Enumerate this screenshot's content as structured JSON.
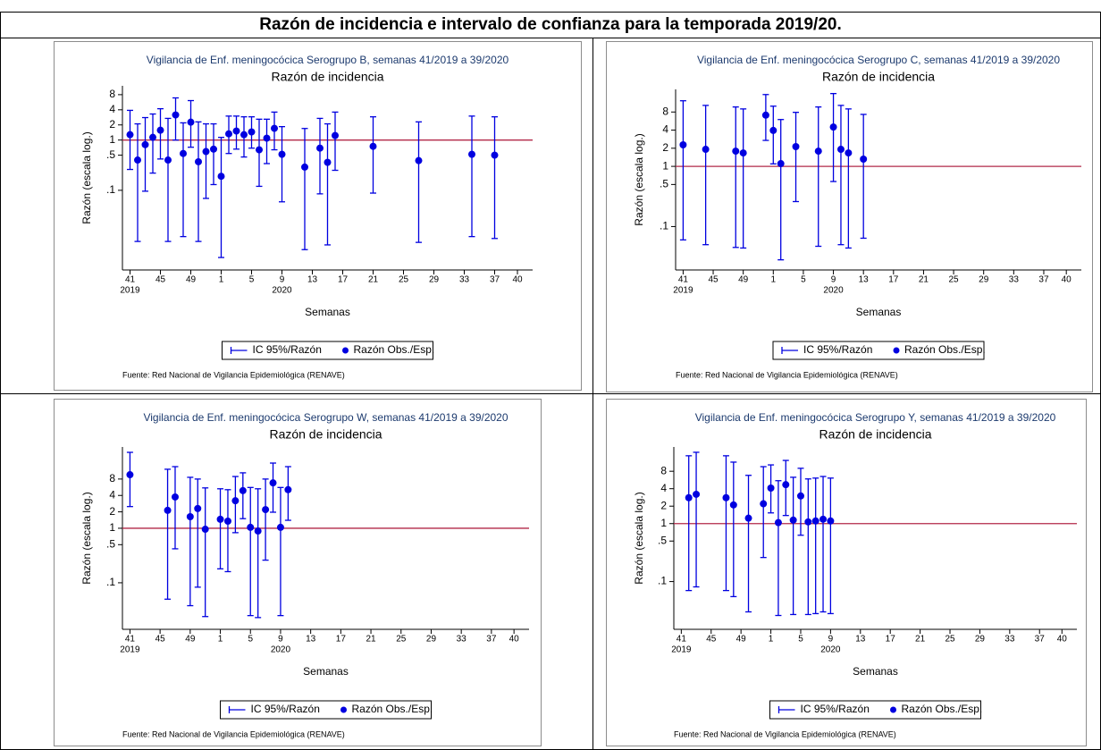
{
  "title": "Razón de incidencia e intervalo de confianza para la temporada 2019/20.",
  "chart_data": [
    {
      "type": "errorbar",
      "title": "Vigilancia de Enf. meningocócica Serogrupo B, semanas 41/2019 a 39/2020",
      "subtitle": "Razón de incidencia",
      "ylabel": "Razón (escala log.)",
      "xlabel": "Semanas",
      "note": "Fuente: Red Nacional de Vigilancia Epidemiológica (RENAVE)",
      "x": [
        "2019-W41",
        "2019-W42",
        "2019-W43",
        "2019-W44",
        "2019-W45",
        "2019-W46",
        "2019-W47",
        "2019-W48",
        "2019-W49",
        "2019-W50",
        "2019-W51",
        "2019-W52",
        "2020-W01",
        "2020-W02",
        "2020-W03",
        "2020-W04",
        "2020-W05",
        "2020-W06",
        "2020-W07",
        "2020-W08",
        "2020-W09",
        "2020-W12",
        "2020-W14",
        "2020-W15",
        "2020-W16",
        "2020-W21",
        "2020-W27",
        "2020-W34",
        "2020-W37"
      ],
      "series": [
        {
          "name": "Razón Obs./Esp.",
          "color": "#0000e0",
          "values": [
            1.28,
            0.4,
            0.81,
            1.13,
            1.57,
            0.4,
            3.16,
            0.54,
            2.27,
            0.37,
            0.59,
            0.66,
            0.19,
            1.33,
            1.51,
            1.28,
            1.45,
            0.64,
            1.09,
            1.71,
            0.52,
            0.29,
            0.69,
            0.36,
            1.23,
            0.75,
            0.39,
            0.52,
            0.5
          ]
        }
      ],
      "error_bars": {
        "name": "IC 95%/Razón",
        "color": "#0000e0",
        "lower": [
          0.26,
          0.0096,
          0.096,
          0.22,
          0.42,
          0.0096,
          1.0,
          0.012,
          0.72,
          0.0096,
          0.069,
          0.13,
          0.0046,
          0.54,
          0.66,
          0.46,
          0.69,
          0.12,
          0.34,
          0.64,
          0.059,
          0.0066,
          0.085,
          0.0082,
          0.25,
          0.088,
          0.0092,
          0.012,
          0.011
        ],
        "upper": [
          3.9,
          2.1,
          2.8,
          3.3,
          4.2,
          2.7,
          6.9,
          2.2,
          6.1,
          2.3,
          2.1,
          2.1,
          1.13,
          3.0,
          3.0,
          2.9,
          2.9,
          2.6,
          2.6,
          3.6,
          1.85,
          1.7,
          2.7,
          2.1,
          3.6,
          2.9,
          2.3,
          3.0,
          2.9
        ]
      },
      "reference_line": {
        "value": 1,
        "color": "#b22848"
      },
      "log_y": true,
      "ylim": [
        0.0026,
        12
      ],
      "yticks": [
        8,
        4,
        2,
        1,
        {
          "value": 0.5,
          "label": ".5"
        },
        {
          "value": 0.1,
          "label": ".1"
        }
      ],
      "xlim": [
        "2019-W40",
        "2020-W42"
      ],
      "xticks": [
        {
          "value": "2019-W41",
          "label": "41"
        },
        {
          "value": "2019-W45",
          "label": "45"
        },
        {
          "value": "2019-W49",
          "label": "49"
        },
        {
          "value": "2020-W01",
          "label": "1"
        },
        {
          "value": "2020-W05",
          "label": "5"
        },
        {
          "value": "2020-W09",
          "label": "9"
        },
        {
          "value": "2020-W13",
          "label": "13"
        },
        {
          "value": "2020-W17",
          "label": "17"
        },
        {
          "value": "2020-W21",
          "label": "21"
        },
        {
          "value": "2020-W25",
          "label": "25"
        },
        {
          "value": "2020-W29",
          "label": "29"
        },
        {
          "value": "2020-W33",
          "label": "33"
        },
        {
          "value": "2020-W37",
          "label": "37"
        },
        {
          "value": "2020-W40",
          "label": "40"
        }
      ],
      "xtick_years": [
        {
          "value": "2019-W41",
          "label": "2019"
        },
        {
          "value": "2020-W09",
          "label": "2020"
        }
      ],
      "legend": "bottom"
    },
    {
      "type": "errorbar",
      "title": "Vigilancia de Enf. meningocócica Serogrupo C, semanas 41/2019 a 39/2020",
      "subtitle": "Razón de incidencia",
      "ylabel": "Razón (escala log.)",
      "xlabel": "Semanas",
      "note": "Fuente: Red Nacional de Vigilancia Epidemiológica (RENAVE)",
      "x": [
        "2019-W41",
        "2019-W44",
        "2019-W48",
        "2019-W49",
        "2019-W52",
        "2020-W01",
        "2020-W02",
        "2020-W04",
        "2020-W07",
        "2020-W09",
        "2020-W10",
        "2020-W11",
        "2020-W13"
      ],
      "series": [
        {
          "name": "Razón Obs./Esp.",
          "color": "#0000e0",
          "values": [
            2.28,
            1.92,
            1.79,
            1.67,
            7.1,
            3.95,
            1.11,
            2.13,
            1.79,
            4.5,
            1.92,
            1.67,
            1.32
          ]
        }
      ],
      "error_bars": {
        "name": "IC 95%/Razón",
        "color": "#0000e0",
        "lower": [
          0.06,
          0.05,
          0.045,
          0.044,
          2.7,
          1.1,
          0.028,
          0.26,
          0.047,
          0.56,
          0.05,
          0.044,
          0.064
        ],
        "upper": [
          12.3,
          10.3,
          9.7,
          9.0,
          15.6,
          10.0,
          6.0,
          7.9,
          9.7,
          16.2,
          10.3,
          9.0,
          7.3
        ]
      },
      "reference_line": {
        "value": 1,
        "color": "#b22848"
      },
      "log_y": true,
      "ylim": [
        0.019,
        19
      ],
      "yticks": [
        8,
        4,
        2,
        1,
        {
          "value": 0.5,
          "label": ".5"
        },
        {
          "value": 0.1,
          "label": ".1"
        }
      ],
      "xlim": [
        "2019-W40",
        "2020-W42"
      ],
      "xticks": [
        {
          "value": "2019-W41",
          "label": "41"
        },
        {
          "value": "2019-W45",
          "label": "45"
        },
        {
          "value": "2019-W49",
          "label": "49"
        },
        {
          "value": "2020-W01",
          "label": "1"
        },
        {
          "value": "2020-W05",
          "label": "5"
        },
        {
          "value": "2020-W09",
          "label": "9"
        },
        {
          "value": "2020-W13",
          "label": "13"
        },
        {
          "value": "2020-W17",
          "label": "17"
        },
        {
          "value": "2020-W21",
          "label": "21"
        },
        {
          "value": "2020-W25",
          "label": "25"
        },
        {
          "value": "2020-W29",
          "label": "29"
        },
        {
          "value": "2020-W33",
          "label": "33"
        },
        {
          "value": "2020-W37",
          "label": "37"
        },
        {
          "value": "2020-W40",
          "label": "40"
        }
      ],
      "xtick_years": [
        {
          "value": "2019-W41",
          "label": "2019"
        },
        {
          "value": "2020-W09",
          "label": "2020"
        }
      ],
      "legend": "bottom"
    },
    {
      "type": "errorbar",
      "title": "Vigilancia de Enf. meningocócica Serogrupo W, semanas 41/2019 a 39/2020",
      "subtitle": "Razón de incidencia",
      "ylabel": "Razón (escala log.)",
      "xlabel": "Semanas",
      "note": "Fuente: Red Nacional de Vigilancia Epidemiológica (RENAVE)",
      "x": [
        "2019-W41",
        "2019-W46",
        "2019-W47",
        "2019-W49",
        "2019-W50",
        "2019-W51",
        "2020-W01",
        "2020-W02",
        "2020-W03",
        "2020-W04",
        "2020-W05",
        "2020-W06",
        "2020-W07",
        "2020-W08",
        "2020-W09",
        "2020-W10"
      ],
      "series": [
        {
          "name": "Razón Obs./Esp.",
          "color": "#0000e0",
          "values": [
            9.6,
            2.13,
            3.75,
            1.63,
            2.3,
            0.96,
            1.46,
            1.35,
            3.2,
            4.9,
            1.04,
            0.89,
            2.2,
            6.8,
            1.04,
            5.1
          ]
        }
      ],
      "error_bars": {
        "name": "IC 95%/Razón",
        "color": "#0000e0",
        "lower": [
          2.5,
          0.05,
          0.42,
          0.038,
          0.083,
          0.024,
          0.18,
          0.16,
          0.83,
          1.5,
          0.025,
          0.023,
          0.26,
          1.97,
          0.025,
          1.4
        ],
        "upper": [
          24.7,
          12.1,
          13.5,
          8.6,
          8.0,
          5.5,
          5.3,
          5.1,
          8.9,
          10.4,
          5.6,
          5.3,
          8.0,
          15.7,
          5.6,
          13.5
        ]
      },
      "reference_line": {
        "value": 1,
        "color": "#b22848"
      },
      "log_y": true,
      "ylim": [
        0.014,
        31
      ],
      "yticks": [
        8,
        4,
        2,
        1,
        {
          "value": 0.5,
          "label": ".5"
        },
        {
          "value": 0.1,
          "label": ".1"
        }
      ],
      "xlim": [
        "2019-W40",
        "2020-W42"
      ],
      "xticks": [
        {
          "value": "2019-W41",
          "label": "41"
        },
        {
          "value": "2019-W45",
          "label": "45"
        },
        {
          "value": "2019-W49",
          "label": "49"
        },
        {
          "value": "2020-W01",
          "label": "1"
        },
        {
          "value": "2020-W05",
          "label": "5"
        },
        {
          "value": "2020-W09",
          "label": "9"
        },
        {
          "value": "2020-W13",
          "label": "13"
        },
        {
          "value": "2020-W17",
          "label": "17"
        },
        {
          "value": "2020-W21",
          "label": "21"
        },
        {
          "value": "2020-W25",
          "label": "25"
        },
        {
          "value": "2020-W29",
          "label": "29"
        },
        {
          "value": "2020-W33",
          "label": "33"
        },
        {
          "value": "2020-W37",
          "label": "37"
        },
        {
          "value": "2020-W40",
          "label": "40"
        }
      ],
      "xtick_years": [
        {
          "value": "2019-W41",
          "label": "2019"
        },
        {
          "value": "2020-W09",
          "label": "2020"
        }
      ],
      "legend": "bottom"
    },
    {
      "type": "errorbar",
      "title": "Vigilancia de Enf. meningocócica Serogrupo Y, semanas 41/2019 a 39/2020",
      "subtitle": "Razón de incidencia",
      "ylabel": "Razón (escala log.)",
      "xlabel": "Semanas",
      "note": "Fuente: Red Nacional de Vigilancia Epidemiológica (RENAVE)",
      "x": [
        "2019-W42",
        "2019-W43",
        "2019-W47",
        "2019-W48",
        "2019-W50",
        "2019-W52",
        "2020-W01",
        "2020-W02",
        "2020-W03",
        "2020-W04",
        "2020-W05",
        "2020-W06",
        "2020-W07",
        "2020-W08",
        "2020-W09"
      ],
      "series": [
        {
          "name": "Razón Obs./Esp.",
          "color": "#0000e0",
          "values": [
            2.8,
            3.2,
            2.8,
            2.1,
            1.24,
            2.2,
            4.1,
            1.04,
            4.7,
            1.15,
            3.0,
            1.07,
            1.11,
            1.19,
            1.11
          ]
        }
      ],
      "error_bars": {
        "name": "IC 95%/Razón",
        "color": "#0000e0",
        "lower": [
          0.07,
          0.081,
          0.07,
          0.055,
          0.03,
          0.26,
          1.53,
          0.026,
          1.38,
          0.027,
          0.63,
          0.027,
          0.028,
          0.03,
          0.028
        ],
        "upper": [
          14.8,
          17.0,
          14.8,
          11.5,
          6.8,
          9.6,
          10.3,
          5.5,
          12.3,
          6.3,
          9.0,
          5.9,
          6.1,
          6.5,
          6.1
        ]
      },
      "reference_line": {
        "value": 1,
        "color": "#b22848"
      },
      "log_y": true,
      "ylim": [
        0.015,
        21
      ],
      "yticks": [
        8,
        4,
        2,
        1,
        {
          "value": 0.5,
          "label": ".5"
        },
        {
          "value": 0.1,
          "label": ".1"
        }
      ],
      "xlim": [
        "2019-W40",
        "2020-W42"
      ],
      "xticks": [
        {
          "value": "2019-W41",
          "label": "41"
        },
        {
          "value": "2019-W45",
          "label": "45"
        },
        {
          "value": "2019-W49",
          "label": "49"
        },
        {
          "value": "2020-W01",
          "label": "1"
        },
        {
          "value": "2020-W05",
          "label": "5"
        },
        {
          "value": "2020-W09",
          "label": "9"
        },
        {
          "value": "2020-W13",
          "label": "13"
        },
        {
          "value": "2020-W17",
          "label": "17"
        },
        {
          "value": "2020-W21",
          "label": "21"
        },
        {
          "value": "2020-W25",
          "label": "25"
        },
        {
          "value": "2020-W29",
          "label": "29"
        },
        {
          "value": "2020-W33",
          "label": "33"
        },
        {
          "value": "2020-W37",
          "label": "37"
        },
        {
          "value": "2020-W40",
          "label": "40"
        }
      ],
      "xtick_years": [
        {
          "value": "2019-W41",
          "label": "2019"
        },
        {
          "value": "2020-W09",
          "label": "2020"
        }
      ],
      "legend": "bottom"
    }
  ]
}
